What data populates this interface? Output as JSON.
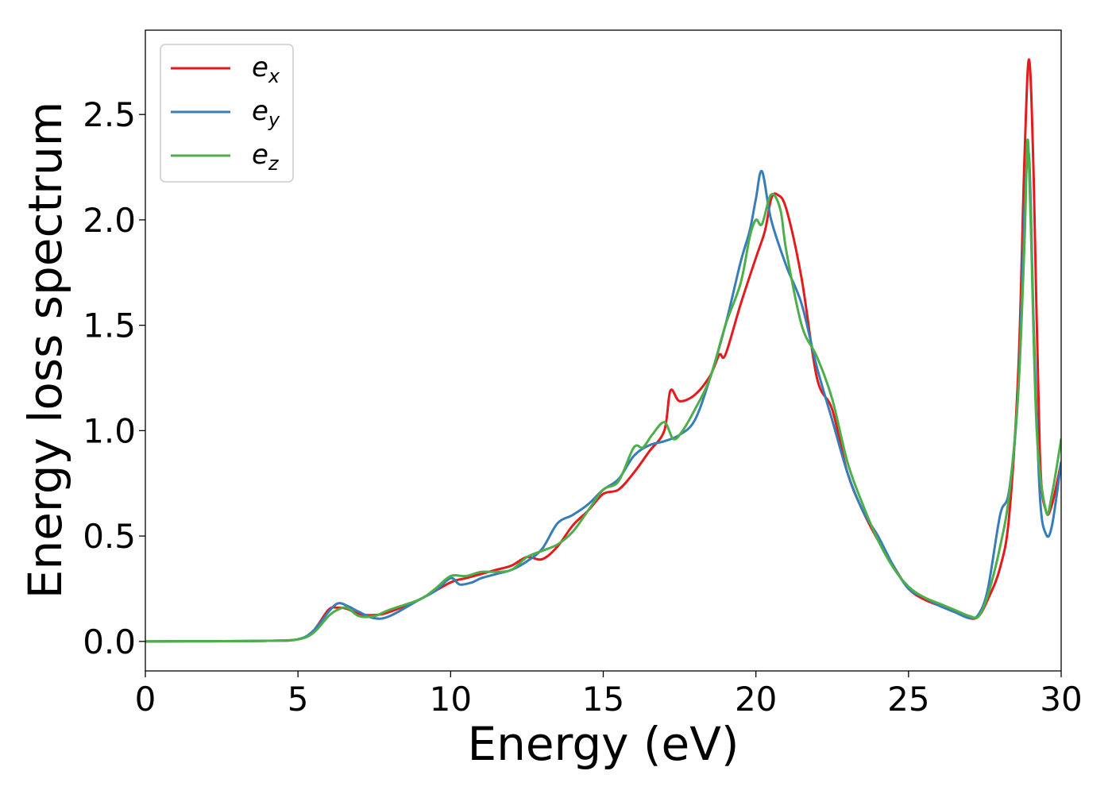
{
  "chart_data": {
    "type": "line",
    "title": "",
    "xlabel": "Energy (eV)",
    "ylabel": "Energy loss spectrum",
    "xlim": [
      0,
      30
    ],
    "ylim": [
      -0.14,
      2.9
    ],
    "xticks": [
      0,
      5,
      10,
      15,
      20,
      25,
      30
    ],
    "xtick_labels": [
      "0",
      "5",
      "10",
      "15",
      "20",
      "25",
      "30"
    ],
    "yticks": [
      0.0,
      0.5,
      1.0,
      1.5,
      2.0,
      2.5
    ],
    "ytick_labels": [
      "0.0",
      "0.5",
      "1.0",
      "1.5",
      "2.0",
      "2.5"
    ],
    "grid": false,
    "legend_position": "top-left",
    "series": [
      {
        "name": "e",
        "subscript": "x",
        "color": "#e41a1c",
        "x": [
          0,
          2,
          4,
          5,
          5.5,
          6,
          6.3,
          6.6,
          7,
          7.5,
          8,
          9,
          10,
          10.5,
          11,
          11.5,
          12,
          12.5,
          13,
          13.5,
          14,
          14.5,
          15,
          15.5,
          16,
          16.5,
          17,
          17.2,
          17.5,
          18,
          18.5,
          18.8,
          19,
          19.5,
          20,
          20.3,
          20.5,
          20.7,
          21,
          21.5,
          22,
          22.5,
          23,
          23.5,
          24,
          24.5,
          25,
          25.5,
          26,
          26.5,
          27,
          27.3,
          27.6,
          28,
          28.3,
          28.6,
          28.8,
          28.95,
          29.1,
          29.3,
          29.5,
          29.7,
          30
        ],
        "y": [
          0,
          0.001,
          0.003,
          0.01,
          0.05,
          0.15,
          0.16,
          0.155,
          0.13,
          0.125,
          0.14,
          0.2,
          0.28,
          0.3,
          0.32,
          0.34,
          0.36,
          0.4,
          0.39,
          0.45,
          0.55,
          0.62,
          0.7,
          0.72,
          0.8,
          0.9,
          1.0,
          1.19,
          1.14,
          1.17,
          1.26,
          1.36,
          1.36,
          1.6,
          1.82,
          1.95,
          2.1,
          2.12,
          2.05,
          1.72,
          1.25,
          1.1,
          0.8,
          0.62,
          0.48,
          0.36,
          0.25,
          0.2,
          0.17,
          0.14,
          0.11,
          0.12,
          0.2,
          0.35,
          0.6,
          1.3,
          2.3,
          2.76,
          2.2,
          0.9,
          0.62,
          0.65,
          0.85
        ]
      },
      {
        "name": "e",
        "subscript": "y",
        "color": "#377eb8",
        "x": [
          0,
          2,
          4,
          5,
          5.5,
          6,
          6.3,
          6.6,
          7,
          7.5,
          8,
          9,
          9.5,
          10,
          10.3,
          10.7,
          11,
          11.5,
          12,
          12.5,
          13,
          13.5,
          14,
          14.5,
          15,
          15.5,
          16,
          16.5,
          17,
          17.5,
          18,
          18.5,
          19,
          19.5,
          19.8,
          20,
          20.2,
          20.5,
          21,
          21.5,
          22,
          22.5,
          23,
          23.5,
          24,
          24.5,
          25,
          25.5,
          26,
          26.5,
          27,
          27.3,
          27.6,
          28,
          28.3,
          28.6,
          28.8,
          28.95,
          29.1,
          29.3,
          29.5,
          29.7,
          30
        ],
        "y": [
          0,
          0.001,
          0.003,
          0.01,
          0.05,
          0.14,
          0.18,
          0.17,
          0.14,
          0.11,
          0.12,
          0.2,
          0.24,
          0.3,
          0.27,
          0.28,
          0.3,
          0.32,
          0.34,
          0.38,
          0.44,
          0.56,
          0.6,
          0.65,
          0.72,
          0.77,
          0.88,
          0.93,
          0.95,
          0.98,
          1.05,
          1.25,
          1.5,
          1.8,
          1.95,
          2.1,
          2.23,
          2.0,
          1.78,
          1.6,
          1.3,
          1.05,
          0.8,
          0.62,
          0.5,
          0.36,
          0.25,
          0.21,
          0.17,
          0.14,
          0.11,
          0.13,
          0.25,
          0.6,
          0.72,
          1.2,
          2.05,
          2.3,
          1.5,
          0.7,
          0.51,
          0.55,
          0.85
        ]
      },
      {
        "name": "e",
        "subscript": "z",
        "color": "#4daf4a",
        "x": [
          0,
          2,
          4,
          5,
          5.5,
          6,
          6.3,
          6.6,
          7,
          7.5,
          8,
          9,
          9.5,
          10,
          10.5,
          11,
          11.5,
          12,
          12.5,
          13,
          13.5,
          14,
          14.5,
          15,
          15.5,
          16,
          16.3,
          16.6,
          17,
          17.3,
          17.6,
          18,
          18.5,
          19,
          19.5,
          19.8,
          20,
          20.2,
          20.5,
          20.8,
          21,
          21.5,
          22,
          22.5,
          23,
          23.5,
          24,
          24.5,
          25,
          25.5,
          26,
          26.5,
          27,
          27.3,
          27.6,
          28,
          28.3,
          28.6,
          28.8,
          28.9,
          29,
          29.2,
          29.5,
          29.7,
          30
        ],
        "y": [
          0,
          0.001,
          0.003,
          0.01,
          0.04,
          0.12,
          0.15,
          0.16,
          0.12,
          0.12,
          0.15,
          0.2,
          0.25,
          0.31,
          0.31,
          0.33,
          0.33,
          0.34,
          0.4,
          0.43,
          0.46,
          0.52,
          0.62,
          0.72,
          0.76,
          0.92,
          0.92,
          0.98,
          1.04,
          0.96,
          1.0,
          1.1,
          1.25,
          1.5,
          1.7,
          1.92,
          2.0,
          1.98,
          2.12,
          2.05,
          1.85,
          1.5,
          1.35,
          1.15,
          0.85,
          0.65,
          0.48,
          0.35,
          0.26,
          0.21,
          0.18,
          0.15,
          0.12,
          0.12,
          0.22,
          0.45,
          0.7,
          1.2,
          1.9,
          2.38,
          2.0,
          1.0,
          0.62,
          0.7,
          0.96
        ]
      }
    ]
  }
}
